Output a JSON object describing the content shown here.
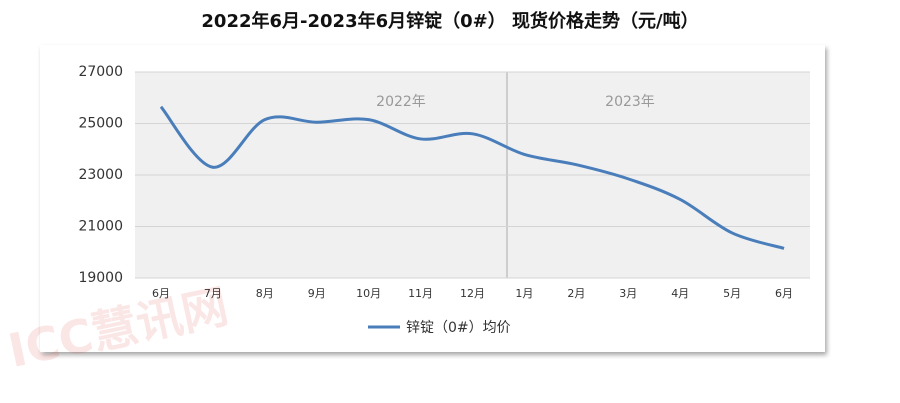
{
  "chart_data": {
    "type": "line",
    "title": "2022年6月-2023年6月锌锭（0#） 现货价格走势（元/吨）",
    "categories": [
      "6月",
      "7月",
      "8月",
      "9月",
      "10月",
      "11月",
      "12月",
      "1月",
      "2月",
      "3月",
      "4月",
      "5月",
      "6月"
    ],
    "series": [
      {
        "name": "锌锭（0#）均价",
        "color": "#4a7ebb",
        "values": [
          25650,
          23300,
          25150,
          25050,
          25150,
          24400,
          24600,
          23800,
          23400,
          22850,
          22050,
          20750,
          20150
        ]
      }
    ],
    "ylim": [
      19000,
      27000
    ],
    "yticks": [
      19000,
      21000,
      23000,
      25000,
      27000
    ],
    "grid": true,
    "annotations": [
      "2022年",
      "2023年"
    ],
    "watermark": "ICC慧讯网"
  }
}
